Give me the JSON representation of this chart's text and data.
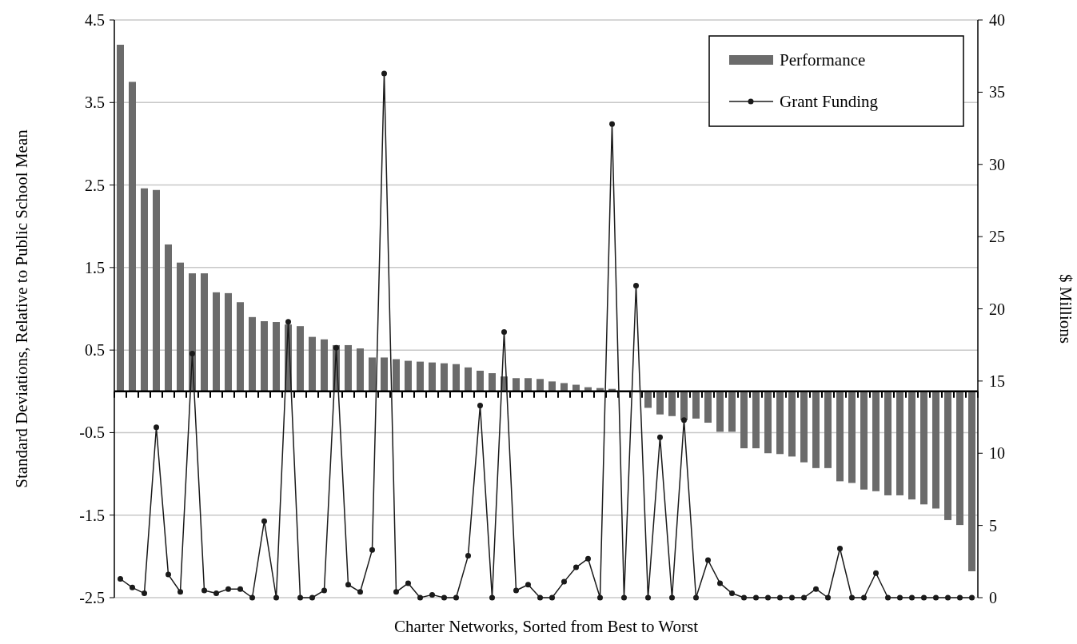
{
  "chart_data": {
    "type": "bar",
    "xlabel": "Charter Networks, Sorted from Best to Worst",
    "ylabel": "Standard Deviations, Relative to Public School Mean",
    "y2label": "$ Millions",
    "categories": [
      null,
      null,
      null,
      null,
      null,
      null,
      null,
      null,
      null,
      null,
      null,
      null,
      null,
      null,
      null,
      null,
      null,
      null,
      null,
      null,
      null,
      null,
      null,
      null,
      null,
      null,
      null,
      null,
      null,
      null,
      null,
      null,
      null,
      null,
      null,
      null,
      null,
      null,
      null,
      null,
      null,
      null,
      null,
      null,
      null,
      null,
      null,
      null,
      null,
      null,
      null,
      null,
      null,
      null,
      null,
      null,
      null,
      null,
      null,
      null,
      null,
      null,
      null,
      null,
      null,
      null,
      null,
      null,
      null,
      null,
      null,
      null
    ],
    "series": [
      {
        "name": "Performance",
        "color": "#6b6b6b",
        "values": [
          4.2,
          3.75,
          2.46,
          2.44,
          1.78,
          1.56,
          1.43,
          1.43,
          1.2,
          1.19,
          1.08,
          0.9,
          0.85,
          0.84,
          0.81,
          0.79,
          0.66,
          0.63,
          0.56,
          0.56,
          0.52,
          0.41,
          0.41,
          0.39,
          0.37,
          0.36,
          0.35,
          0.34,
          0.33,
          0.29,
          0.25,
          0.22,
          0.18,
          0.16,
          0.16,
          0.15,
          0.12,
          0.1,
          0.08,
          0.05,
          0.04,
          0.03,
          null,
          null,
          -0.2,
          -0.28,
          -0.3,
          -0.35,
          -0.33,
          -0.38,
          -0.49,
          -0.49,
          -0.69,
          -0.69,
          -0.75,
          -0.76,
          -0.79,
          -0.86,
          -0.93,
          -0.93,
          -1.09,
          -1.11,
          -1.19,
          -1.21,
          -1.26,
          -1.26,
          -1.31,
          -1.37,
          -1.42,
          -1.56,
          -1.62,
          -2.18
        ]
      },
      {
        "name": "Grant Funding",
        "type": "line",
        "axis": "y2",
        "color": "#1a1a1a",
        "values": [
          1.3,
          0.7,
          0.3,
          11.8,
          1.6,
          0.4,
          16.9,
          0.5,
          0.3,
          0.6,
          0.6,
          0,
          5.3,
          0,
          19.1,
          0,
          0,
          0.5,
          17.3,
          0.9,
          0.4,
          3.3,
          36.3,
          0.4,
          1,
          0,
          0.2,
          0,
          0,
          2.9,
          13.3,
          0,
          18.4,
          0.5,
          0.9,
          0,
          0,
          1.1,
          2.1,
          2.7,
          0,
          32.8,
          0,
          21.6,
          0,
          11.1,
          0,
          12.3,
          0,
          2.6,
          1,
          0.3,
          0,
          0,
          0,
          0,
          0,
          0,
          0.6,
          0,
          3.4,
          0,
          0,
          1.7,
          0,
          0,
          0,
          0,
          0,
          0,
          0,
          0
        ]
      }
    ],
    "ylim": [
      -2.5,
      4.5
    ],
    "yticks": [
      -2.5,
      -1.5,
      -0.5,
      0.5,
      1.5,
      2.5,
      3.5,
      4.5
    ],
    "y2lim": [
      0,
      40
    ],
    "y2ticks": [
      0,
      5,
      10,
      15,
      20,
      25,
      30,
      35,
      40
    ],
    "grid": "y",
    "legend": "top right",
    "marker": "circle",
    "line_style": "solid"
  }
}
